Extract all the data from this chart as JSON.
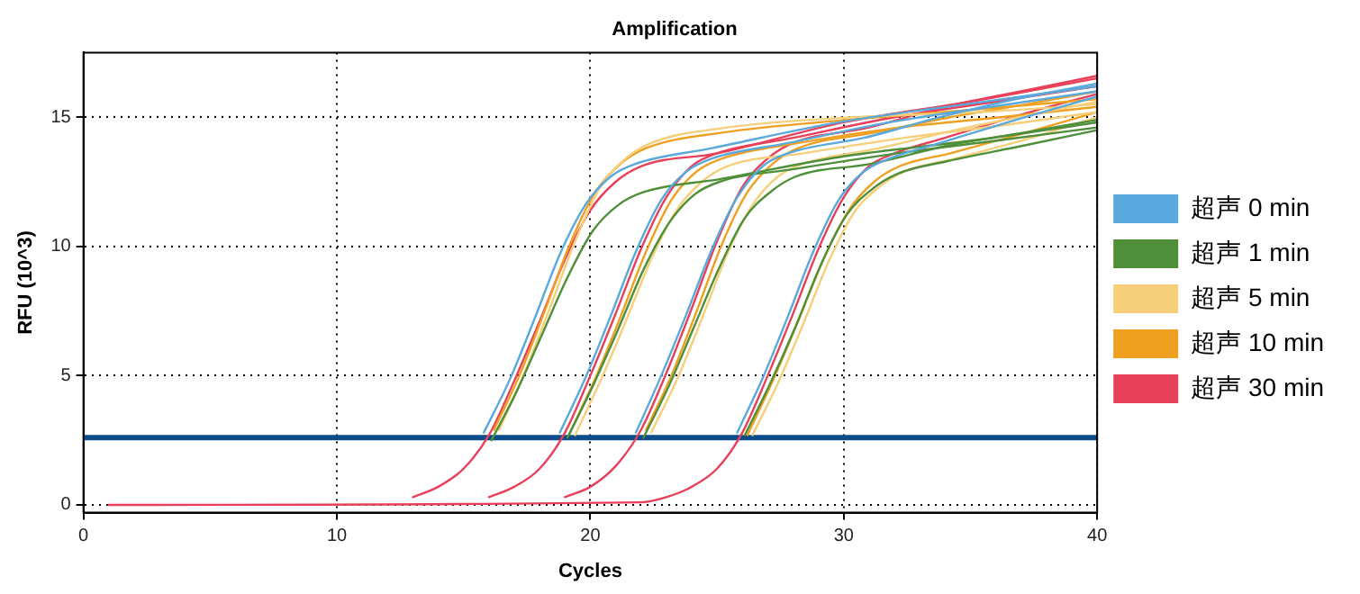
{
  "chart_data": {
    "type": "line",
    "title": "Amplification",
    "xlabel": "Cycles",
    "ylabel": "RFU (10^3)",
    "xlim": [
      0,
      40
    ],
    "xticks": [
      0,
      10,
      20,
      30,
      40
    ],
    "ylim": [
      -0.3,
      17.5
    ],
    "yticks": [
      0,
      5,
      10,
      15
    ],
    "grid": true,
    "legend": "right",
    "marker": "none",
    "line_style": "solid",
    "ref_lines": [
      {
        "axis": "y",
        "value": 2.6,
        "color": "#0d4c8a"
      }
    ],
    "series": [
      {
        "name": "超声 0 min",
        "color": "#5aa9dc",
        "x": [
          15.8,
          16.8,
          17.8,
          18.8,
          19.8,
          20.8,
          21.8,
          24.8,
          29.8,
          34.8,
          40
        ],
        "values": [
          2.8,
          4.8,
          7.2,
          9.7,
          11.6,
          12.7,
          13.2,
          13.8,
          14.8,
          15.5,
          16.2
        ]
      },
      {
        "color": "#5aa9dc",
        "x": [
          18.8,
          19.8,
          20.8,
          21.8,
          22.8,
          23.8,
          24.8,
          27.8,
          31.8,
          35.8,
          40
        ],
        "values": [
          2.8,
          4.9,
          7.3,
          9.8,
          11.8,
          12.9,
          13.4,
          14.0,
          14.8,
          15.4,
          16.0
        ]
      },
      {
        "color": "#5aa9dc",
        "x": [
          21.8,
          22.8,
          23.8,
          24.8,
          25.8,
          26.8,
          27.8,
          30.8,
          33.8,
          36.8,
          40
        ],
        "values": [
          2.8,
          5.0,
          7.4,
          9.9,
          11.9,
          13.1,
          13.6,
          14.2,
          15.0,
          15.7,
          16.3
        ]
      },
      {
        "color": "#5aa9dc",
        "x": [
          25.8,
          26.8,
          27.8,
          28.8,
          29.8,
          30.8,
          31.8,
          33.8,
          36.8,
          40
        ],
        "values": [
          2.8,
          4.9,
          7.3,
          9.8,
          11.8,
          12.9,
          13.4,
          14.0,
          14.9,
          15.8
        ]
      },
      {
        "name": "超声 1 min",
        "color": "#4f8f3a",
        "x": [
          16.1,
          17.1,
          18.1,
          19.1,
          20.1,
          21.1,
          22.1,
          25.1,
          30.1,
          35.1,
          40
        ],
        "values": [
          2.5,
          4.4,
          6.6,
          8.8,
          10.6,
          11.6,
          12.1,
          12.6,
          13.5,
          14.1,
          14.8
        ]
      },
      {
        "color": "#4f8f3a",
        "x": [
          19.1,
          20.1,
          21.1,
          22.1,
          23.1,
          24.1,
          25.1,
          28.1,
          32.1,
          36.1,
          40
        ],
        "values": [
          2.6,
          4.6,
          6.8,
          9.1,
          10.9,
          12.0,
          12.5,
          13.0,
          13.6,
          14.1,
          14.6
        ]
      },
      {
        "color": "#4f8f3a",
        "x": [
          22.1,
          23.1,
          24.1,
          25.1,
          26.1,
          27.1,
          28.1,
          31.1,
          34.1,
          37.1,
          40
        ],
        "values": [
          2.6,
          4.6,
          6.9,
          9.2,
          11.1,
          12.1,
          12.7,
          13.2,
          13.9,
          14.4,
          14.9
        ]
      },
      {
        "color": "#4f8f3a",
        "x": [
          26.1,
          27.1,
          28.1,
          29.1,
          30.1,
          31.1,
          32.1,
          34.1,
          37.1,
          40
        ],
        "values": [
          2.7,
          4.7,
          6.9,
          9.3,
          11.2,
          12.2,
          12.8,
          13.3,
          13.9,
          14.5
        ]
      },
      {
        "name": "超声 5 min",
        "color": "#f5cf7a",
        "x": [
          16.4,
          17.4,
          18.4,
          19.4,
          20.4,
          21.4,
          22.4,
          25.4,
          30.4,
          35.4,
          40
        ],
        "values": [
          2.9,
          5.1,
          7.6,
          10.2,
          12.3,
          13.4,
          14.0,
          14.6,
          15.0,
          15.2,
          15.5
        ]
      },
      {
        "color": "#f5cf7a",
        "x": [
          19.4,
          20.4,
          21.4,
          22.4,
          23.4,
          24.4,
          25.4,
          28.4,
          32.4,
          36.4,
          40
        ],
        "values": [
          2.7,
          4.8,
          7.1,
          9.5,
          11.4,
          12.5,
          13.1,
          13.6,
          14.2,
          14.7,
          15.2
        ]
      },
      {
        "color": "#f5cf7a",
        "x": [
          22.4,
          23.4,
          24.4,
          25.4,
          26.4,
          27.4,
          28.4,
          31.4,
          34.4,
          37.4,
          40
        ],
        "values": [
          2.8,
          4.8,
          7.2,
          9.7,
          11.6,
          12.7,
          13.2,
          13.8,
          14.5,
          15.1,
          15.6
        ]
      },
      {
        "color": "#f5cf7a",
        "x": [
          26.4,
          27.4,
          28.4,
          29.4,
          30.4,
          31.4,
          32.4,
          34.4,
          37.4,
          40
        ],
        "values": [
          2.7,
          4.7,
          7.0,
          9.4,
          11.3,
          12.3,
          12.9,
          13.4,
          14.2,
          15.0
        ]
      },
      {
        "name": "超声 10 min",
        "color": "#f0a020",
        "x": [
          16.2,
          17.2,
          18.2,
          19.2,
          20.2,
          21.2,
          22.2,
          25.2,
          30.2,
          35.2,
          40
        ],
        "values": [
          2.9,
          5.0,
          7.5,
          10.1,
          12.1,
          13.2,
          13.8,
          14.4,
          14.9,
          15.3,
          15.7
        ]
      },
      {
        "color": "#f0a020",
        "x": [
          19.2,
          20.2,
          21.2,
          22.2,
          23.2,
          24.2,
          25.2,
          28.2,
          32.2,
          36.2,
          40
        ],
        "values": [
          2.8,
          4.9,
          7.3,
          9.8,
          11.8,
          12.9,
          13.4,
          14.0,
          14.6,
          15.0,
          15.4
        ]
      },
      {
        "color": "#f0a020",
        "x": [
          22.2,
          23.2,
          24.2,
          25.2,
          26.2,
          27.2,
          28.2,
          31.2,
          34.2,
          37.2,
          40
        ],
        "values": [
          2.9,
          5.0,
          7.5,
          10.1,
          12.1,
          13.2,
          13.8,
          14.4,
          15.0,
          15.5,
          16.0
        ]
      },
      {
        "color": "#f0a020",
        "x": [
          26.2,
          27.2,
          28.2,
          29.2,
          30.2,
          31.2,
          32.2,
          34.2,
          37.2,
          40
        ],
        "values": [
          2.7,
          4.8,
          7.1,
          9.5,
          11.4,
          12.5,
          13.1,
          13.6,
          14.4,
          15.2
        ]
      },
      {
        "name": "超声 30 min",
        "color": "#e8405a",
        "x": [
          13,
          14,
          15,
          16,
          17,
          18,
          19,
          20,
          21,
          22,
          25,
          30,
          35,
          40
        ],
        "values": [
          0.3,
          0.7,
          1.4,
          2.7,
          4.8,
          7.1,
          9.5,
          11.4,
          12.5,
          13.1,
          13.6,
          14.8,
          15.6,
          16.5
        ]
      },
      {
        "color": "#e8405a",
        "x": [
          16,
          17,
          18,
          19,
          20,
          21,
          22,
          23,
          24,
          25,
          28,
          32,
          36,
          40
        ],
        "values": [
          0.3,
          0.7,
          1.4,
          2.8,
          5.0,
          7.4,
          9.9,
          11.9,
          13.1,
          13.6,
          14.2,
          15.0,
          15.6,
          16.2
        ]
      },
      {
        "color": "#e8405a",
        "x": [
          19,
          20,
          21,
          22,
          23,
          24,
          25,
          26,
          27,
          28,
          31,
          34,
          37,
          40
        ],
        "values": [
          0.3,
          0.7,
          1.5,
          2.9,
          5.1,
          7.6,
          10.2,
          12.3,
          13.4,
          14.0,
          14.6,
          15.4,
          16.0,
          16.6
        ]
      },
      {
        "color": "#e8405a",
        "x": [
          1,
          22,
          23,
          24,
          25,
          26,
          27,
          28,
          29,
          30,
          31,
          32,
          34,
          37,
          40
        ],
        "values": [
          0,
          0.1,
          0.3,
          0.7,
          1.4,
          2.8,
          5.0,
          7.4,
          9.9,
          11.9,
          13.1,
          13.6,
          14.2,
          15.1,
          15.9
        ]
      }
    ]
  }
}
